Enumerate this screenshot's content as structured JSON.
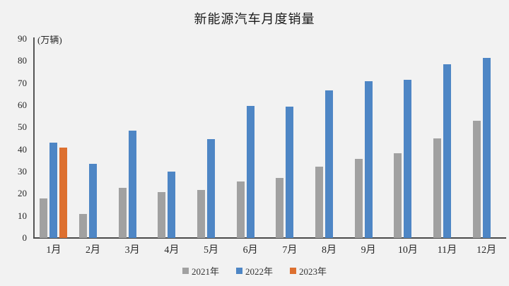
{
  "chart": {
    "title": "新能源汽车月度销量",
    "unit_label": "(万辆)"
  },
  "chart_data": {
    "type": "bar",
    "title": "新能源汽车月度销量",
    "xlabel": "",
    "ylabel": "(万辆)",
    "categories": [
      "1月",
      "2月",
      "3月",
      "4月",
      "5月",
      "6月",
      "7月",
      "8月",
      "9月",
      "10月",
      "11月",
      "12月"
    ],
    "series": [
      {
        "name": "2021年",
        "color": "#a1a1a1",
        "values": [
          17.9,
          11.0,
          22.6,
          20.6,
          21.7,
          25.6,
          27.1,
          32.1,
          35.7,
          38.3,
          45.0,
          53.1
        ]
      },
      {
        "name": "2022年",
        "color": "#4e86c5",
        "values": [
          43.1,
          33.4,
          48.4,
          29.9,
          44.7,
          59.6,
          59.3,
          66.6,
          70.8,
          71.4,
          78.6,
          81.4
        ]
      },
      {
        "name": "2023年",
        "color": "#dd7030",
        "values": [
          40.8,
          null,
          null,
          null,
          null,
          null,
          null,
          null,
          null,
          null,
          null,
          null
        ]
      }
    ],
    "ylim": [
      0,
      90
    ],
    "yticks": [
      0,
      10,
      20,
      30,
      40,
      50,
      60,
      70,
      80,
      90
    ],
    "grid": false,
    "legend_position": "bottom",
    "background_color": "#f2f2f2",
    "axis_color": "#4a4a4a"
  }
}
